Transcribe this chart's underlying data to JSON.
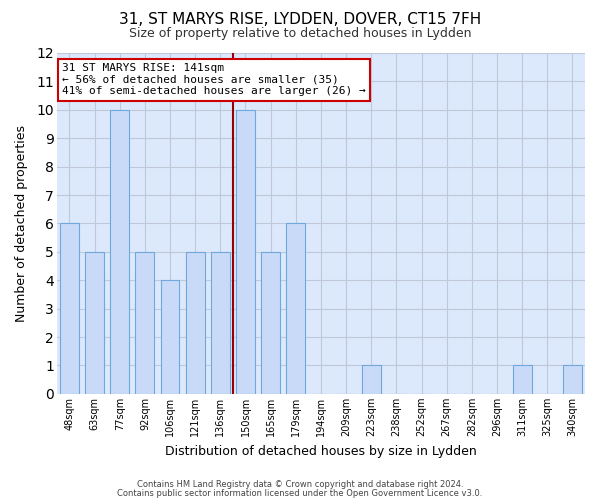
{
  "title_line1": "31, ST MARYS RISE, LYDDEN, DOVER, CT15 7FH",
  "title_line2": "Size of property relative to detached houses in Lydden",
  "xlabel": "Distribution of detached houses by size in Lydden",
  "ylabel": "Number of detached properties",
  "categories": [
    "48sqm",
    "63sqm",
    "77sqm",
    "92sqm",
    "106sqm",
    "121sqm",
    "136sqm",
    "150sqm",
    "165sqm",
    "179sqm",
    "194sqm",
    "209sqm",
    "223sqm",
    "238sqm",
    "252sqm",
    "267sqm",
    "282sqm",
    "296sqm",
    "311sqm",
    "325sqm",
    "340sqm"
  ],
  "values": [
    6,
    5,
    10,
    5,
    4,
    5,
    5,
    10,
    5,
    6,
    0,
    0,
    1,
    0,
    0,
    0,
    0,
    0,
    1,
    0,
    1
  ],
  "bar_color": "#c9daf8",
  "bar_edge_color": "#6fa8dc",
  "grid_color": "#c0c8d8",
  "background_color": "#dce8fb",
  "red_line_x": 6.5,
  "annotation_text": "31 ST MARYS RISE: 141sqm\n← 56% of detached houses are smaller (35)\n41% of semi-detached houses are larger (26) →",
  "annotation_box_facecolor": "#ffffff",
  "annotation_box_edgecolor": "#cc0000",
  "ylim": [
    0,
    12
  ],
  "yticks": [
    0,
    1,
    2,
    3,
    4,
    5,
    6,
    7,
    8,
    9,
    10,
    11,
    12
  ],
  "footer_line1": "Contains HM Land Registry data © Crown copyright and database right 2024.",
  "footer_line2": "Contains public sector information licensed under the Open Government Licence v3.0."
}
